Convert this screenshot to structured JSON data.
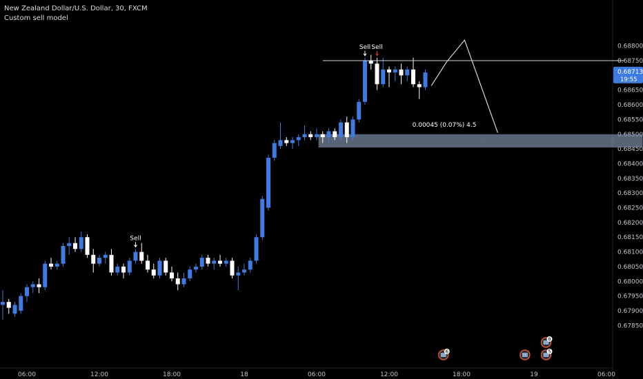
{
  "header": {
    "title": "New Zealand Dollar/U.S. Dollar, 30, FXCM",
    "subtitle": "Custom sell model"
  },
  "colors": {
    "background": "#000000",
    "up": "#3d7be0",
    "down": "#ffffff",
    "axis_text": "#c3c7cd",
    "zone": "#7a8aa3",
    "price_badge": "#3d7be0",
    "signal_red": "#e0332e",
    "event_ring": "#d9572b"
  },
  "chart_data": {
    "type": "candlestick",
    "title": "New Zealand Dollar/U.S. Dollar, 30, FXCM",
    "y_range": [
      0.6775,
      0.689
    ],
    "y_ticks": [
      "0.68800",
      "0.68750",
      "0.68700",
      "0.68650",
      "0.68600",
      "0.68550",
      "0.68500",
      "0.68450",
      "0.68400",
      "0.68350",
      "0.68300",
      "0.68250",
      "0.68200",
      "0.68150",
      "0.68100",
      "0.68050",
      "0.68000",
      "0.67950",
      "0.67900",
      "0.67850"
    ],
    "x_ticks": [
      {
        "label": "06:00",
        "bar": 4
      },
      {
        "label": "12:00",
        "bar": 16
      },
      {
        "label": "18:00",
        "bar": 28
      },
      {
        "label": "18",
        "bar": 40
      },
      {
        "label": "06:00",
        "bar": 52
      },
      {
        "label": "12:00",
        "bar": 64
      },
      {
        "label": "18:00",
        "bar": 76
      },
      {
        "label": "19",
        "bar": 88
      },
      {
        "label": "06:00",
        "bar": 100
      }
    ],
    "current_price": {
      "value": "0.68713",
      "countdown": "19:55",
      "price": 0.68713
    },
    "candles": [
      {
        "o": 0.6792,
        "h": 0.6797,
        "l": 0.6787,
        "c": 0.6793
      },
      {
        "o": 0.6793,
        "h": 0.6794,
        "l": 0.6789,
        "c": 0.6791
      },
      {
        "o": 0.6789,
        "h": 0.6793,
        "l": 0.6788,
        "c": 0.6792
      },
      {
        "o": 0.679,
        "h": 0.6796,
        "l": 0.6789,
        "c": 0.6795
      },
      {
        "o": 0.6795,
        "h": 0.6799,
        "l": 0.6793,
        "c": 0.6798
      },
      {
        "o": 0.6798,
        "h": 0.68,
        "l": 0.6796,
        "c": 0.6799
      },
      {
        "o": 0.6799,
        "h": 0.6801,
        "l": 0.6796,
        "c": 0.6798
      },
      {
        "o": 0.6798,
        "h": 0.6807,
        "l": 0.6797,
        "c": 0.6806
      },
      {
        "o": 0.6806,
        "h": 0.6808,
        "l": 0.6804,
        "c": 0.6805
      },
      {
        "o": 0.6805,
        "h": 0.6807,
        "l": 0.6804,
        "c": 0.6806
      },
      {
        "o": 0.6806,
        "h": 0.6813,
        "l": 0.6805,
        "c": 0.6812
      },
      {
        "o": 0.6812,
        "h": 0.6815,
        "l": 0.6809,
        "c": 0.6813
      },
      {
        "o": 0.6813,
        "h": 0.6815,
        "l": 0.681,
        "c": 0.6811
      },
      {
        "o": 0.6811,
        "h": 0.6817,
        "l": 0.681,
        "c": 0.6815
      },
      {
        "o": 0.6815,
        "h": 0.6816,
        "l": 0.6808,
        "c": 0.6809
      },
      {
        "o": 0.6809,
        "h": 0.6811,
        "l": 0.6803,
        "c": 0.6806
      },
      {
        "o": 0.6806,
        "h": 0.6809,
        "l": 0.6805,
        "c": 0.6808
      },
      {
        "o": 0.6808,
        "h": 0.681,
        "l": 0.6806,
        "c": 0.6809
      },
      {
        "o": 0.6809,
        "h": 0.6811,
        "l": 0.6802,
        "c": 0.6803
      },
      {
        "o": 0.6803,
        "h": 0.6806,
        "l": 0.6802,
        "c": 0.6805
      },
      {
        "o": 0.6805,
        "h": 0.6806,
        "l": 0.6801,
        "c": 0.6803
      },
      {
        "o": 0.6803,
        "h": 0.6808,
        "l": 0.6802,
        "c": 0.6807
      },
      {
        "o": 0.6807,
        "h": 0.6811,
        "l": 0.6806,
        "c": 0.681
      },
      {
        "o": 0.681,
        "h": 0.6813,
        "l": 0.6806,
        "c": 0.6807
      },
      {
        "o": 0.6807,
        "h": 0.6809,
        "l": 0.6803,
        "c": 0.6804
      },
      {
        "o": 0.6804,
        "h": 0.6806,
        "l": 0.6801,
        "c": 0.6802
      },
      {
        "o": 0.6802,
        "h": 0.6808,
        "l": 0.6801,
        "c": 0.6807
      },
      {
        "o": 0.6807,
        "h": 0.6808,
        "l": 0.6802,
        "c": 0.6803
      },
      {
        "o": 0.6803,
        "h": 0.6805,
        "l": 0.68,
        "c": 0.6801
      },
      {
        "o": 0.6801,
        "h": 0.6803,
        "l": 0.6797,
        "c": 0.6799
      },
      {
        "o": 0.6799,
        "h": 0.6803,
        "l": 0.6798,
        "c": 0.6801
      },
      {
        "o": 0.6801,
        "h": 0.6805,
        "l": 0.68,
        "c": 0.6804
      },
      {
        "o": 0.6804,
        "h": 0.6806,
        "l": 0.6803,
        "c": 0.6805
      },
      {
        "o": 0.6805,
        "h": 0.6809,
        "l": 0.6804,
        "c": 0.6808
      },
      {
        "o": 0.6808,
        "h": 0.6809,
        "l": 0.6805,
        "c": 0.6806
      },
      {
        "o": 0.6806,
        "h": 0.6808,
        "l": 0.6804,
        "c": 0.6807
      },
      {
        "o": 0.6807,
        "h": 0.6809,
        "l": 0.6805,
        "c": 0.6806
      },
      {
        "o": 0.6806,
        "h": 0.6808,
        "l": 0.6805,
        "c": 0.6807
      },
      {
        "o": 0.6807,
        "h": 0.6808,
        "l": 0.6801,
        "c": 0.6802
      },
      {
        "o": 0.6802,
        "h": 0.6805,
        "l": 0.6797,
        "c": 0.6803
      },
      {
        "o": 0.6803,
        "h": 0.6806,
        "l": 0.6802,
        "c": 0.6804
      },
      {
        "o": 0.6804,
        "h": 0.6808,
        "l": 0.6803,
        "c": 0.6807
      },
      {
        "o": 0.6807,
        "h": 0.6816,
        "l": 0.6806,
        "c": 0.6815
      },
      {
        "o": 0.6815,
        "h": 0.6829,
        "l": 0.6814,
        "c": 0.6828
      },
      {
        "o": 0.6825,
        "h": 0.6843,
        "l": 0.6824,
        "c": 0.6842
      },
      {
        "o": 0.6842,
        "h": 0.6848,
        "l": 0.6841,
        "c": 0.6847
      },
      {
        "o": 0.6846,
        "h": 0.6854,
        "l": 0.6845,
        "c": 0.6848
      },
      {
        "o": 0.6848,
        "h": 0.6849,
        "l": 0.6846,
        "c": 0.6847
      },
      {
        "o": 0.6847,
        "h": 0.6849,
        "l": 0.6845,
        "c": 0.6848
      },
      {
        "o": 0.6848,
        "h": 0.685,
        "l": 0.6846,
        "c": 0.6849
      },
      {
        "o": 0.6849,
        "h": 0.6853,
        "l": 0.6848,
        "c": 0.685
      },
      {
        "o": 0.685,
        "h": 0.6851,
        "l": 0.6848,
        "c": 0.6849
      },
      {
        "o": 0.6849,
        "h": 0.6852,
        "l": 0.6848,
        "c": 0.685
      },
      {
        "o": 0.685,
        "h": 0.6851,
        "l": 0.6847,
        "c": 0.6849
      },
      {
        "o": 0.6849,
        "h": 0.6852,
        "l": 0.6847,
        "c": 0.6851
      },
      {
        "o": 0.6851,
        "h": 0.6852,
        "l": 0.6848,
        "c": 0.6849
      },
      {
        "o": 0.6849,
        "h": 0.6855,
        "l": 0.6848,
        "c": 0.6854
      },
      {
        "o": 0.6854,
        "h": 0.6856,
        "l": 0.6847,
        "c": 0.6849
      },
      {
        "o": 0.6849,
        "h": 0.6856,
        "l": 0.6848,
        "c": 0.6855
      },
      {
        "o": 0.6855,
        "h": 0.6862,
        "l": 0.6854,
        "c": 0.6861
      },
      {
        "o": 0.6861,
        "h": 0.6876,
        "l": 0.686,
        "c": 0.6875
      },
      {
        "o": 0.6875,
        "h": 0.6877,
        "l": 0.6872,
        "c": 0.6874
      },
      {
        "o": 0.6874,
        "h": 0.6876,
        "l": 0.6865,
        "c": 0.6867
      },
      {
        "o": 0.6867,
        "h": 0.6876,
        "l": 0.6866,
        "c": 0.6872
      },
      {
        "o": 0.6872,
        "h": 0.6873,
        "l": 0.6866,
        "c": 0.6871
      },
      {
        "o": 0.6871,
        "h": 0.6873,
        "l": 0.6868,
        "c": 0.6872
      },
      {
        "o": 0.6872,
        "h": 0.6874,
        "l": 0.6867,
        "c": 0.687
      },
      {
        "o": 0.687,
        "h": 0.6873,
        "l": 0.6868,
        "c": 0.6872
      },
      {
        "o": 0.6872,
        "h": 0.6876,
        "l": 0.6866,
        "c": 0.6867
      },
      {
        "o": 0.6867,
        "h": 0.6868,
        "l": 0.6862,
        "c": 0.6866
      },
      {
        "o": 0.6866,
        "h": 0.6872,
        "l": 0.6865,
        "c": 0.6871
      }
    ],
    "signals": [
      {
        "label": "Sell",
        "bar": 22,
        "color": "white"
      },
      {
        "label": "Sell",
        "bar": 60,
        "color": "white"
      },
      {
        "label": "Sell",
        "bar": 62,
        "color": "red"
      }
    ],
    "resistance_line": {
      "price": 0.6875,
      "from_bar": 53,
      "to_bar": 103
    },
    "zone": {
      "top": 0.685,
      "bottom": 0.68455,
      "from_bar": 52.3,
      "to_bar": 106
    },
    "projection_path": [
      {
        "bar": 71,
        "price": 0.68665
      },
      {
        "bar": 73.5,
        "price": 0.68745
      },
      {
        "bar": 76.5,
        "price": 0.6882
      },
      {
        "bar": 82,
        "price": 0.68505
      }
    ],
    "measure_label": "0.00045 (0.07%) 4.5",
    "events": [
      {
        "bar": 73,
        "count": "6"
      },
      {
        "bar": 86.5,
        "count": ""
      },
      {
        "bar": 90,
        "count": "8"
      },
      {
        "bar": 90,
        "count": "5"
      }
    ]
  }
}
